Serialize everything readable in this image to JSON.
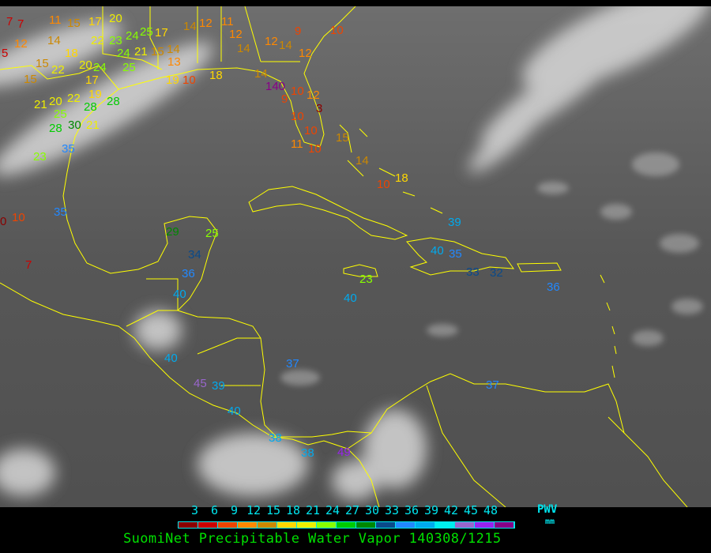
{
  "legend": {
    "title": "SuomiNet Precipitable Water Vapor 140308/1215",
    "unit_label": "PWV",
    "unit": "mm",
    "ticks": [
      "3",
      "6",
      "9",
      "12",
      "15",
      "18",
      "21",
      "24",
      "27",
      "30",
      "33",
      "36",
      "39",
      "42",
      "45",
      "48"
    ],
    "colors": [
      "#8b0000",
      "#cc0000",
      "#ee4400",
      "#ff8800",
      "#cc8800",
      "#ffd700",
      "#eeee00",
      "#88ff00",
      "#00cc00",
      "#008800",
      "#0a4a8a",
      "#2288ff",
      "#00aaee",
      "#00eeee",
      "#9966cc",
      "#9922ee",
      "#880088"
    ]
  },
  "map": {
    "coastline_color": "#ffff00",
    "stations": [
      "7",
      "7",
      "11",
      "15",
      "17",
      "20",
      "12",
      "14",
      "5",
      "15",
      "18",
      "22",
      "15",
      "20",
      "24",
      "17",
      "19",
      "22",
      "23",
      "24",
      "25",
      "24",
      "25",
      "21",
      "17",
      "15",
      "14",
      "13",
      "14",
      "12",
      "19",
      "10",
      "18",
      "11",
      "12",
      "14",
      "12",
      "14",
      "9",
      "12",
      "10",
      "14",
      "140",
      "10",
      "12",
      "9",
      "10",
      "3",
      "10",
      "11",
      "10",
      "15",
      "14",
      "18",
      "10",
      "39",
      "40",
      "35",
      "33",
      "32",
      "36",
      "23",
      "40",
      "29",
      "25",
      "34",
      "36",
      "40",
      "40",
      "45",
      "39",
      "40",
      "37",
      "37",
      "38",
      "38",
      "49",
      "35",
      "10",
      "0",
      "7",
      "23",
      "28",
      "30",
      "21",
      "25",
      "20",
      "22",
      "28",
      "35",
      "21",
      "28"
    ]
  }
}
